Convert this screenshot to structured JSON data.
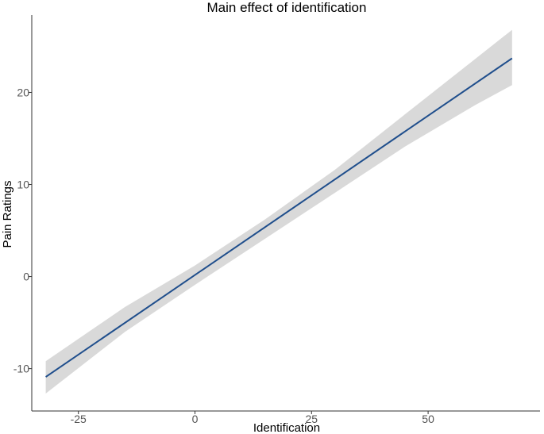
{
  "chart_data": {
    "type": "line",
    "title": "Main effect of identification",
    "xlabel": "Identification",
    "ylabel": "Pain Ratings",
    "xlim": [
      -35,
      74
    ],
    "ylim": [
      -14.6,
      28.4
    ],
    "x_ticks": [
      -25,
      0,
      25,
      50
    ],
    "y_ticks": [
      -10,
      0,
      10,
      20
    ],
    "x_tick_labels": [
      "-25",
      "0",
      "25",
      "50"
    ],
    "y_tick_labels": [
      "-10",
      "0",
      "10",
      "20"
    ],
    "grid": false,
    "legend": "none",
    "series": [
      {
        "type": "line",
        "x": [
          -32,
          68
        ],
        "y": [
          -10.9,
          23.7
        ],
        "color": "#1f4e8c"
      },
      {
        "type": "confidence_band",
        "x": [
          -32,
          -15,
          0,
          15,
          30,
          45,
          60,
          68
        ],
        "lower": [
          -12.7,
          -6.0,
          -0.9,
          4.1,
          9.1,
          14.1,
          18.6,
          20.8
        ],
        "upper": [
          -9.2,
          -3.3,
          1.2,
          6.2,
          11.6,
          17.6,
          23.6,
          26.8
        ],
        "color": "#d9d9d9"
      }
    ]
  }
}
